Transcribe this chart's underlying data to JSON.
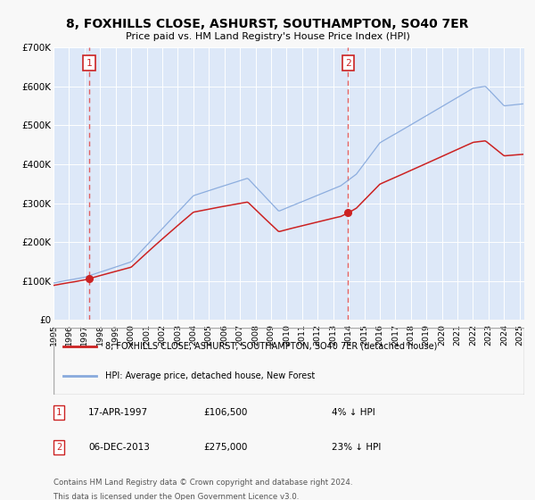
{
  "title": "8, FOXHILLS CLOSE, ASHURST, SOUTHAMPTON, SO40 7ER",
  "subtitle": "Price paid vs. HM Land Registry's House Price Index (HPI)",
  "bg_color": "#f8f8f8",
  "plot_bg_color": "#dde8f8",
  "grid_color": "#ffffff",
  "sale1_price": 106500,
  "sale1_label": "17-APR-1997",
  "sale1_pct": "4%",
  "sale2_price": 275000,
  "sale2_label": "06-DEC-2013",
  "sale2_pct": "23%",
  "red_line_color": "#cc2222",
  "blue_line_color": "#88aadd",
  "vline_color": "#e06060",
  "dot_color": "#cc2222",
  "legend1_label": "8, FOXHILLS CLOSE, ASHURST, SOUTHAMPTON, SO40 7ER (detached house)",
  "legend2_label": "HPI: Average price, detached house, New Forest",
  "footer1": "Contains HM Land Registry data © Crown copyright and database right 2024.",
  "footer2": "This data is licensed under the Open Government Licence v3.0.",
  "ylim": [
    0,
    700000
  ],
  "yticks": [
    0,
    100000,
    200000,
    300000,
    400000,
    500000,
    600000,
    700000
  ],
  "ytick_labels": [
    "£0",
    "£100K",
    "£200K",
    "£300K",
    "£400K",
    "£500K",
    "£600K",
    "£700K"
  ]
}
